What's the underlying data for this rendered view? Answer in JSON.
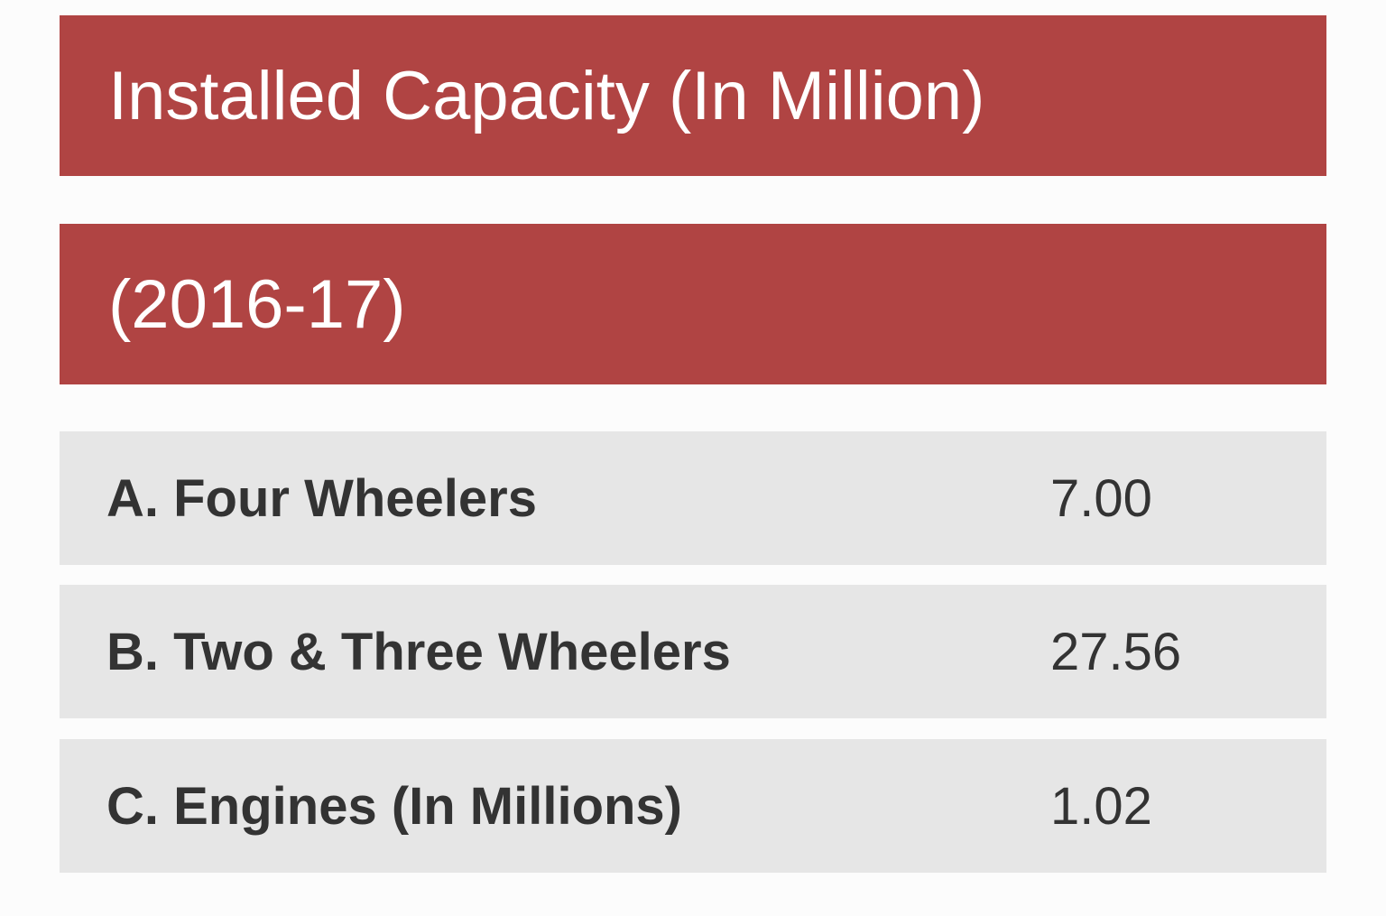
{
  "header": {
    "title": "Installed Capacity (In Million)",
    "period": "(2016-17)"
  },
  "rows": [
    {
      "label": "A. Four Wheelers",
      "value": "7.00"
    },
    {
      "label": "B. Two & Three Wheelers",
      "value": "27.56"
    },
    {
      "label": "C. Engines (In Millions)",
      "value": "1.02"
    }
  ],
  "colors": {
    "header_bg": "#b04443",
    "row_bg": "#e6e6e6"
  }
}
